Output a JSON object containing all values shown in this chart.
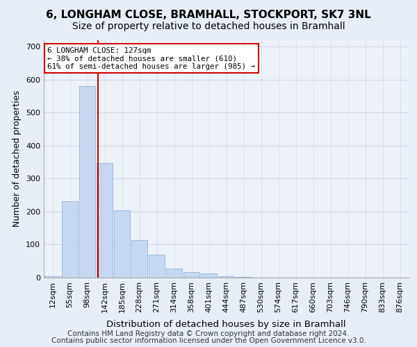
{
  "title_line1": "6, LONGHAM CLOSE, BRAMHALL, STOCKPORT, SK7 3NL",
  "title_line2": "Size of property relative to detached houses in Bramhall",
  "xlabel": "Distribution of detached houses by size in Bramhall",
  "ylabel": "Number of detached properties",
  "bin_labels": [
    "12sqm",
    "55sqm",
    "98sqm",
    "142sqm",
    "185sqm",
    "228sqm",
    "271sqm",
    "314sqm",
    "358sqm",
    "401sqm",
    "444sqm",
    "487sqm",
    "530sqm",
    "574sqm",
    "617sqm",
    "660sqm",
    "703sqm",
    "746sqm",
    "790sqm",
    "833sqm",
    "876sqm"
  ],
  "bar_heights": [
    5,
    232,
    580,
    347,
    203,
    113,
    70,
    27,
    17,
    12,
    5,
    2,
    1,
    0,
    0,
    0,
    0,
    0,
    0,
    0,
    0
  ],
  "bar_color": "#c5d8f0",
  "bar_edge_color": "#a0b8d8",
  "grid_color": "#d0d8e8",
  "background_color": "#e8eef8",
  "axes_background_color": "#edf2f9",
  "property_line_x": 2.62,
  "property_line_color": "#cc0000",
  "annotation_line1": "6 LONGHAM CLOSE: 127sqm",
  "annotation_line2": "← 38% of detached houses are smaller (610)",
  "annotation_line3": "61% of semi-detached houses are larger (985) →",
  "annotation_box_color": "#ffffff",
  "annotation_box_edge": "#cc0000",
  "footer_line1": "Contains HM Land Registry data © Crown copyright and database right 2024.",
  "footer_line2": "Contains public sector information licensed under the Open Government Licence v3.0.",
  "ylim": [
    0,
    720
  ],
  "yticks": [
    0,
    100,
    200,
    300,
    400,
    500,
    600,
    700
  ],
  "title_fontsize": 11,
  "subtitle_fontsize": 10,
  "axis_label_fontsize": 9,
  "tick_fontsize": 8,
  "footer_fontsize": 7.5
}
